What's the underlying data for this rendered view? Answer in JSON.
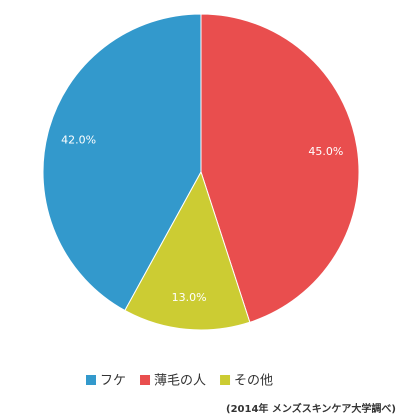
{
  "chart_data": {
    "type": "pie",
    "categories": [
      "フケ",
      "薄毛の人",
      "その他"
    ],
    "values": [
      42.0,
      45.0,
      13.0
    ],
    "value_labels": [
      "42.0%",
      "45.0%",
      "13.0%"
    ],
    "colors": [
      "#3399cc",
      "#e94e4e",
      "#cccc33"
    ],
    "legend": "bottom",
    "note": "(2014年 メンズスキンケア大学調べ)"
  }
}
